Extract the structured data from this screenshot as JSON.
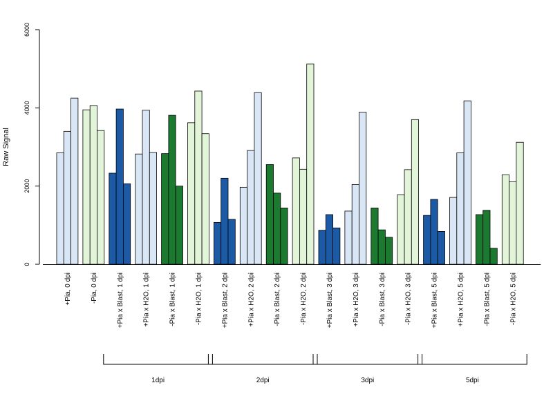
{
  "colors": {
    "light_blue": "#d9e6f5",
    "dark_blue": "#1c5aa6",
    "light_green": "#e2f5d9",
    "dark_green": "#1c7a30"
  },
  "chart_data": {
    "type": "bar",
    "ylabel": "Raw Signal",
    "ylim": [
      0,
      6000
    ],
    "yticks": [
      0,
      2000,
      4000,
      6000
    ],
    "grid": false,
    "legend": "none",
    "categories": [
      "+Pia, 0 dpi",
      "-Pia, 0 dpi",
      "+Pia x Blast, 1 dpi",
      "+Pia x H2O, 1 dpi",
      "-Pia x Blast, 1 dpi",
      "-Pia x H2O, 1 dpi",
      "+Pia x Blast, 2 dpi",
      "+Pia x H2O, 2 dpi",
      "-Pia x Blast, 2 dpi",
      "-Pia x H2O, 2 dpi",
      "+Pia x Blast, 3 dpi",
      "+Pia x H2O, 3 dpi",
      "-Pia x Blast, 3 dpi",
      "-Pia x H2O, 3 dpi",
      "+Pia x Blast, 5 dpi",
      "+Pia x H2O, 5 dpi",
      "-Pia x Blast, 5 dpi",
      "-Pia x H2O, 5 dpi"
    ],
    "category_colors": [
      "light_blue",
      "light_green",
      "dark_blue",
      "light_blue",
      "dark_green",
      "light_green",
      "dark_blue",
      "light_blue",
      "dark_green",
      "light_green",
      "dark_blue",
      "light_blue",
      "dark_green",
      "light_green",
      "dark_blue",
      "light_blue",
      "dark_green",
      "light_green"
    ],
    "values": [
      [
        2850,
        3400,
        4250
      ],
      [
        3950,
        4060,
        3420
      ],
      [
        2330,
        3970,
        2060
      ],
      [
        2820,
        3940,
        2860
      ],
      [
        2830,
        3810,
        2000
      ],
      [
        3620,
        4430,
        3340
      ],
      [
        1070,
        2200,
        1150
      ],
      [
        1970,
        2910,
        4390
      ],
      [
        2550,
        1820,
        1440
      ],
      [
        2720,
        2430,
        5120
      ],
      [
        870,
        1270,
        930
      ],
      [
        1360,
        2040,
        3890
      ],
      [
        1440,
        880,
        690
      ],
      [
        1780,
        2420,
        3700
      ],
      [
        1250,
        1660,
        840
      ],
      [
        1710,
        2850,
        4180
      ],
      [
        1270,
        1380,
        410
      ],
      [
        2290,
        2110,
        3120
      ]
    ],
    "groups": [
      {
        "label": "1dpi",
        "categories": [
          2,
          3,
          4,
          5
        ]
      },
      {
        "label": "2dpi",
        "categories": [
          6,
          7,
          8,
          9
        ]
      },
      {
        "label": "3dpi",
        "categories": [
          10,
          11,
          12,
          13
        ]
      },
      {
        "label": "5dpi",
        "categories": [
          14,
          15,
          16,
          17
        ]
      }
    ]
  }
}
